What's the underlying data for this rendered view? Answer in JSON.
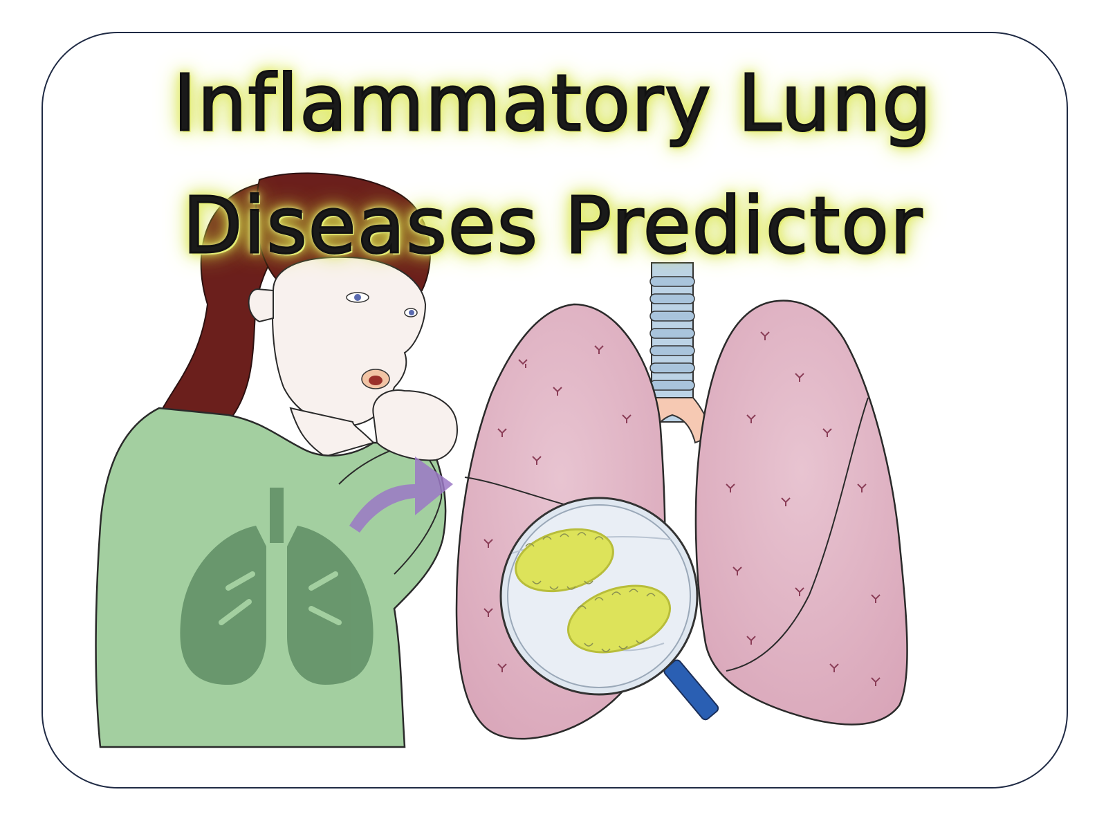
{
  "title": {
    "line1": "Inflammatory Lung",
    "line2": "Diseases Predictor"
  },
  "illustration": {
    "subjects": [
      "coughing-woman",
      "lungs",
      "magnifying-glass",
      "bacteria",
      "arrow"
    ]
  },
  "colors": {
    "frame_border": "#1f2a44",
    "title_glow": "#d8e44a",
    "shirt_green": "#a3cfa0",
    "lung_pink": "#e2b6c6",
    "bacteria_yellow": "#dde35a",
    "arrow_purple": "#9b78c6",
    "magnifier_blue": "#2a5fb3"
  }
}
